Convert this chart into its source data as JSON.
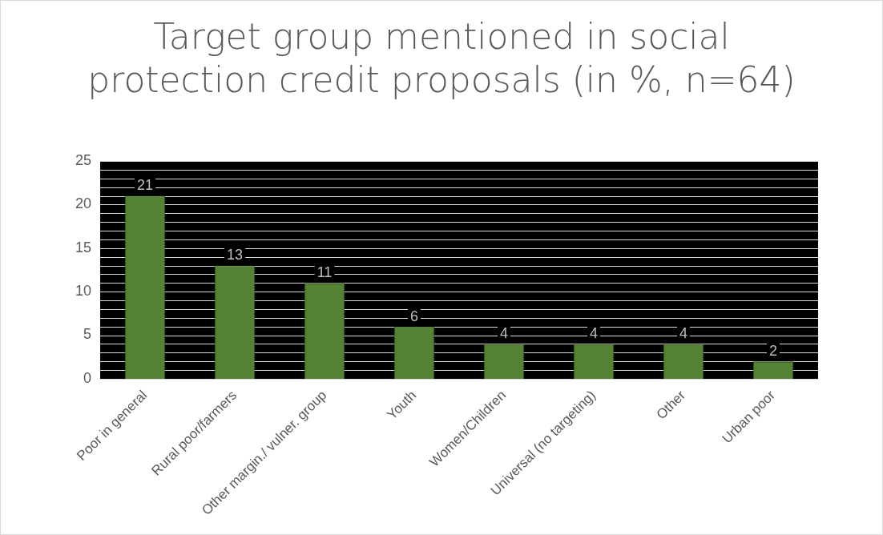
{
  "chart_data": {
    "type": "bar",
    "title": "Target group mentioned in social protection credit proposals (in %, n=64)",
    "categories": [
      "Poor in general",
      "Rural poor/farmers",
      "Other margin./ vulner. group",
      "Youth",
      "Women/Children",
      "Universal (no targeting)",
      "Other",
      "Urban poor"
    ],
    "values": [
      21,
      13,
      11,
      6,
      4,
      4,
      4,
      2
    ],
    "color": "#548235",
    "ylim": [
      0,
      25
    ],
    "yticks": [
      0,
      {
        "value": 1,
        "label": null
      },
      {
        "value": 2,
        "label": null
      },
      {
        "value": 3,
        "label": null
      },
      {
        "value": 4,
        "label": null
      },
      5,
      {
        "value": 6,
        "label": null
      },
      {
        "value": 7,
        "label": null
      },
      {
        "value": 8,
        "label": null
      },
      {
        "value": 9,
        "label": null
      },
      10,
      {
        "value": 11,
        "label": null
      },
      {
        "value": 12,
        "label": null
      },
      {
        "value": 13,
        "label": null
      },
      {
        "value": 14,
        "label": null
      },
      15,
      {
        "value": 16,
        "label": null
      },
      {
        "value": 17,
        "label": null
      },
      {
        "value": 18,
        "label": null
      },
      {
        "value": 19,
        "label": null
      },
      20,
      {
        "value": 21,
        "label": null
      },
      {
        "value": 22,
        "label": null
      },
      {
        "value": 23,
        "label": null
      },
      {
        "value": 24,
        "label": null
      },
      25
    ],
    "grid": "y",
    "data_labels": true,
    "legend": false
  }
}
